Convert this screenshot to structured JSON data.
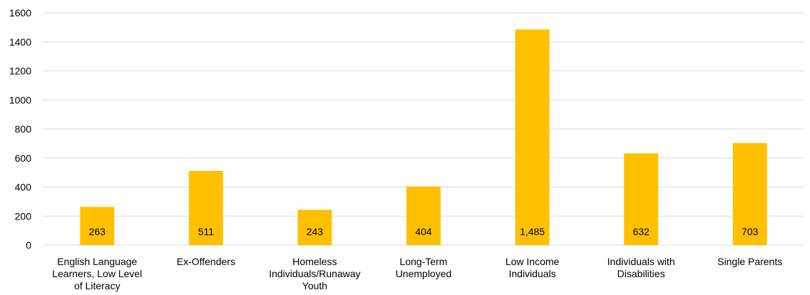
{
  "chart_data": {
    "type": "bar",
    "title": "",
    "xlabel": "",
    "ylabel": "",
    "ylim": [
      0,
      1600
    ],
    "yticks": [
      0,
      200,
      400,
      600,
      800,
      1000,
      1200,
      1400,
      1600
    ],
    "ytick_labels": [
      "0",
      "200",
      "400",
      "600",
      "800",
      "1000",
      "1200",
      "1400",
      "1600"
    ],
    "grid": true,
    "bar_color": "#FFC000",
    "grid_color": "#D9D9D9",
    "categories": [
      [
        "English Language",
        "Learners, Low Level",
        "of Literacy"
      ],
      [
        "Ex-Offenders"
      ],
      [
        "Homeless",
        "Individuals/Runaway",
        "Youth"
      ],
      [
        "Long-Term",
        "Unemployed"
      ],
      [
        "Low Income",
        "Individuals"
      ],
      [
        "Individuals with",
        "Disabilities"
      ],
      [
        "Single Parents"
      ]
    ],
    "values": [
      263,
      511,
      243,
      404,
      1485,
      632,
      703
    ],
    "data_labels": [
      "263",
      "511",
      "243",
      "404",
      "1,485",
      "632",
      "703"
    ]
  }
}
